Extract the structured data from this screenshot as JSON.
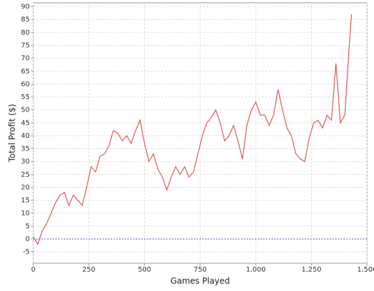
{
  "chart_data": {
    "type": "line",
    "x_label": "Games Played",
    "y_label": "Total Profit ($)",
    "x": [
      0,
      20,
      40,
      60,
      80,
      100,
      120,
      140,
      160,
      180,
      200,
      220,
      240,
      260,
      280,
      300,
      320,
      340,
      360,
      380,
      400,
      420,
      440,
      460,
      480,
      500,
      520,
      540,
      560,
      580,
      600,
      620,
      640,
      660,
      680,
      700,
      720,
      740,
      760,
      780,
      800,
      820,
      840,
      860,
      880,
      900,
      920,
      940,
      960,
      980,
      1000,
      1020,
      1040,
      1060,
      1080,
      1100,
      1120,
      1140,
      1160,
      1180,
      1200,
      1220,
      1240,
      1260,
      1280,
      1300,
      1320,
      1340,
      1360,
      1380,
      1400,
      1420,
      1430
    ],
    "series": [
      {
        "color": "#e05555",
        "values": [
          1,
          -2,
          3,
          6,
          10,
          14,
          17,
          18,
          13,
          17,
          15,
          13,
          20,
          28,
          26,
          32,
          33,
          36,
          42,
          41,
          38,
          40,
          37,
          42,
          46,
          37,
          30,
          33,
          27,
          24,
          19,
          24,
          28,
          25,
          28,
          24,
          26,
          33,
          40,
          45,
          47,
          50,
          45,
          38,
          40,
          44,
          38,
          31,
          44,
          50,
          53,
          48,
          48,
          44,
          48,
          58,
          50,
          43,
          40,
          33,
          31,
          30,
          39,
          45,
          46,
          43,
          48,
          46,
          68,
          45,
          48,
          75,
          87
        ]
      }
    ],
    "xlim": [
      0,
      1500
    ],
    "xticks": [
      0,
      250,
      500,
      750,
      {
        "value": 1000,
        "label": "1,000"
      },
      {
        "value": 1250,
        "label": "1,250"
      },
      {
        "value": 1500,
        "label": "1,500"
      }
    ],
    "ylim": [
      -9.4,
      91.5
    ],
    "yticks": [
      -5,
      0,
      5,
      10,
      15,
      20,
      25,
      30,
      35,
      40,
      45,
      50,
      55,
      60,
      65,
      70,
      75,
      80,
      85,
      90
    ],
    "grid": true
  }
}
